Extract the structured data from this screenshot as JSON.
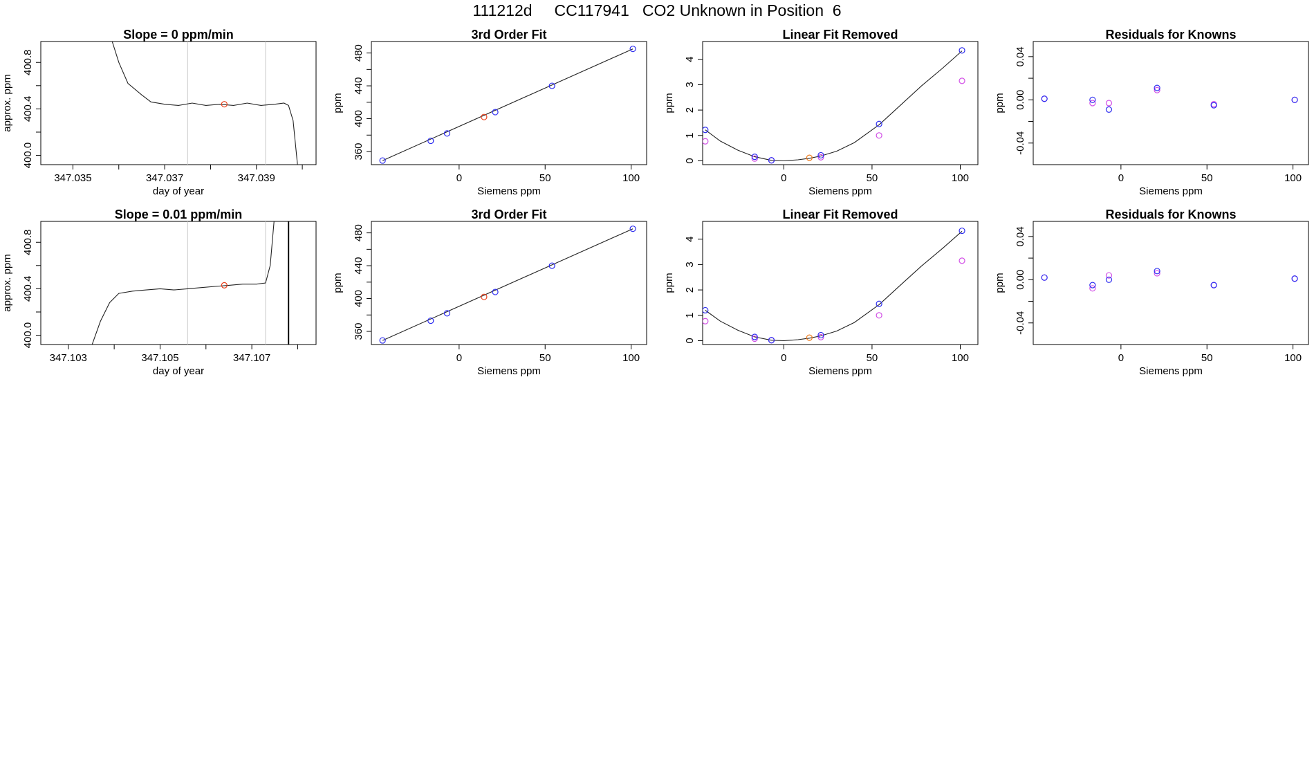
{
  "title": "111212d     CC117941   CO2 Unknown in Position  6",
  "colors": {
    "blue": "#2e2ef0",
    "red": "#e8401c",
    "orange": "#ee7a1a",
    "magenta": "#d24ee6",
    "purple": "#8a2be2",
    "gray": "#c8c8c8",
    "line": "#222222"
  },
  "chart_data": [
    {
      "type": "line",
      "title": "Slope =  0  ppm/min",
      "xlabel": "day of year",
      "ylabel": "approx. ppm",
      "xticks": [
        "347.035",
        "347.037",
        "347.039"
      ],
      "xtick_values": [
        347.035,
        347.036,
        347.037,
        347.038,
        347.039,
        347.04
      ],
      "yticks": [
        "400.0",
        "400.4",
        "400.8"
      ],
      "ytick_values": [
        400.0,
        400.2,
        400.4,
        400.6,
        400.8
      ],
      "xlim": [
        347.0343,
        347.0403
      ],
      "ylim": [
        399.92,
        400.98
      ],
      "vlines_gray": [
        347.0375,
        347.0392
      ],
      "series": [
        {
          "x": [
            347.0358,
            347.036,
            347.0362,
            347.0365,
            347.0367,
            347.037,
            347.0373,
            347.0376,
            347.0379,
            347.0382,
            347.0385,
            347.0388,
            347.0391,
            347.0394,
            347.0396,
            347.0397,
            347.0398,
            347.0399
          ],
          "y": [
            401.05,
            400.8,
            400.62,
            400.52,
            400.46,
            400.44,
            400.43,
            400.45,
            400.43,
            400.44,
            400.43,
            400.45,
            400.43,
            400.44,
            400.45,
            400.43,
            400.3,
            399.9
          ]
        }
      ],
      "marker": {
        "x": 347.0383,
        "y": 400.44,
        "color": "red"
      }
    },
    {
      "type": "scatter",
      "title": "3rd Order Fit",
      "xlabel": "Siemens ppm",
      "ylabel": "ppm",
      "xticks": [
        "0",
        "50",
        "100"
      ],
      "xtick_values": [
        0,
        50,
        100
      ],
      "yticks": [
        "360",
        "400",
        "440",
        "480"
      ],
      "ytick_values": [
        360,
        380,
        400,
        420,
        440,
        460,
        480
      ],
      "xlim": [
        -51,
        109
      ],
      "ylim": [
        344,
        494
      ],
      "fit_line": {
        "x": [
          -44.5,
          101
        ],
        "y": [
          349,
          485
        ]
      },
      "points_blue": {
        "x": [
          -44.5,
          -16.5,
          -7,
          21,
          54,
          101
        ],
        "y": [
          349,
          373,
          382,
          408,
          440,
          485
        ]
      },
      "points_red": {
        "x": [
          14.5
        ],
        "y": [
          402
        ]
      }
    },
    {
      "type": "scatter",
      "title": "Linear Fit Removed",
      "xlabel": "Siemens ppm",
      "ylabel": "ppm",
      "xticks": [
        "0",
        "50",
        "100"
      ],
      "xtick_values": [
        0,
        50,
        100
      ],
      "yticks": [
        "0",
        "1",
        "2",
        "3",
        "4"
      ],
      "ytick_values": [
        0,
        1,
        2,
        3,
        4
      ],
      "xlim": [
        -46,
        110
      ],
      "ylim": [
        -0.15,
        4.7
      ],
      "curve": {
        "x": [
          -44.5,
          -36,
          -26,
          -16.5,
          -7,
          0,
          8,
          14.5,
          21,
          30,
          40,
          54,
          65,
          78,
          90,
          101
        ],
        "y": [
          1.22,
          0.78,
          0.42,
          0.16,
          0.02,
          0.0,
          0.04,
          0.1,
          0.19,
          0.38,
          0.72,
          1.42,
          2.12,
          2.95,
          3.65,
          4.33
        ]
      },
      "points_blue": {
        "x": [
          -44.5,
          -16.5,
          -7,
          21,
          54,
          101
        ],
        "y": [
          1.22,
          0.16,
          0.02,
          0.22,
          1.45,
          4.35
        ]
      },
      "points_magenta": {
        "x": [
          -44.5,
          -16.5,
          -7,
          21,
          54,
          101
        ],
        "y": [
          0.77,
          0.09,
          0.02,
          0.14,
          1.0,
          3.15
        ]
      },
      "points_orange": {
        "x": [
          14.5
        ],
        "y": [
          0.12
        ]
      }
    },
    {
      "type": "scatter",
      "title": "Residuals for Knowns",
      "xlabel": "Siemens ppm",
      "ylabel": "ppm",
      "xticks": [
        "0",
        "50",
        "100"
      ],
      "xtick_values": [
        0,
        50,
        100
      ],
      "yticks": [
        "-0.04",
        "0.00",
        "0.04"
      ],
      "ytick_values": [
        -0.04,
        -0.02,
        0.0,
        0.02,
        0.04
      ],
      "xlim": [
        -51,
        109
      ],
      "ylim": [
        -0.06,
        0.054
      ],
      "points_blue": {
        "x": [
          -44.5,
          -16.5,
          -7,
          21,
          54,
          101
        ],
        "y": [
          0.001,
          0.0,
          -0.009,
          0.011,
          -0.005,
          0.0
        ]
      },
      "points_magenta": {
        "x": [
          -44.5,
          -16.5,
          -7,
          21,
          54,
          101
        ],
        "y": [
          0.001,
          -0.003,
          -0.003,
          0.009,
          -0.004,
          0.0
        ]
      }
    },
    {
      "type": "line",
      "title": "Slope =  0.01  ppm/min",
      "xlabel": "day of year",
      "ylabel": "approx. ppm",
      "xticks": [
        "347.103",
        "347.105",
        "347.107"
      ],
      "xtick_values": [
        347.103,
        347.104,
        347.105,
        347.106,
        347.107,
        347.108
      ],
      "yticks": [
        "400.0",
        "400.4",
        "400.8"
      ],
      "ytick_values": [
        400.0,
        400.2,
        400.4,
        400.6,
        400.8
      ],
      "xlim": [
        347.1024,
        347.1084
      ],
      "ylim": [
        399.92,
        400.98
      ],
      "vlines_gray": [
        347.1056,
        347.1073
      ],
      "vlines_black": [
        347.1078
      ],
      "series": [
        {
          "x": [
            347.1035,
            347.1037,
            347.1039,
            347.1041,
            347.1044,
            347.1047,
            347.105,
            347.1053,
            347.1056,
            347.1059,
            347.1062,
            347.1065,
            347.1068,
            347.1071,
            347.1073,
            347.1074,
            347.1075
          ],
          "y": [
            399.9,
            400.12,
            400.28,
            400.36,
            400.38,
            400.39,
            400.4,
            400.39,
            400.4,
            400.41,
            400.42,
            400.43,
            400.44,
            400.44,
            400.45,
            400.6,
            401.05
          ]
        }
      ],
      "marker": {
        "x": 347.1064,
        "y": 400.43,
        "color": "red"
      }
    },
    {
      "type": "scatter",
      "title": "3rd Order Fit",
      "xlabel": "Siemens ppm",
      "ylabel": "ppm",
      "xticks": [
        "0",
        "50",
        "100"
      ],
      "xtick_values": [
        0,
        50,
        100
      ],
      "yticks": [
        "360",
        "400",
        "440",
        "480"
      ],
      "ytick_values": [
        360,
        380,
        400,
        420,
        440,
        460,
        480
      ],
      "xlim": [
        -51,
        109
      ],
      "ylim": [
        344,
        494
      ],
      "fit_line": {
        "x": [
          -44.5,
          101
        ],
        "y": [
          349,
          485
        ]
      },
      "points_blue": {
        "x": [
          -44.5,
          -16.5,
          -7,
          21,
          54,
          101
        ],
        "y": [
          349,
          373,
          382,
          408,
          440,
          485
        ]
      },
      "points_red": {
        "x": [
          14.5
        ],
        "y": [
          402
        ]
      }
    },
    {
      "type": "scatter",
      "title": "Linear Fit Removed",
      "xlabel": "Siemens ppm",
      "ylabel": "ppm",
      "xticks": [
        "0",
        "50",
        "100"
      ],
      "xtick_values": [
        0,
        50,
        100
      ],
      "yticks": [
        "0",
        "1",
        "2",
        "3",
        "4"
      ],
      "ytick_values": [
        0,
        1,
        2,
        3,
        4
      ],
      "xlim": [
        -46,
        110
      ],
      "ylim": [
        -0.15,
        4.7
      ],
      "curve": {
        "x": [
          -44.5,
          -36,
          -26,
          -16.5,
          -7,
          0,
          8,
          14.5,
          21,
          30,
          40,
          54,
          65,
          78,
          90,
          101
        ],
        "y": [
          1.2,
          0.77,
          0.41,
          0.15,
          0.02,
          0.0,
          0.04,
          0.1,
          0.19,
          0.38,
          0.72,
          1.42,
          2.12,
          2.94,
          3.64,
          4.31
        ]
      },
      "points_blue": {
        "x": [
          -44.5,
          -16.5,
          -7,
          21,
          54,
          101
        ],
        "y": [
          1.2,
          0.15,
          0.02,
          0.22,
          1.45,
          4.33
        ]
      },
      "points_magenta": {
        "x": [
          -44.5,
          -16.5,
          -7,
          21,
          54,
          101
        ],
        "y": [
          0.77,
          0.08,
          0.02,
          0.14,
          1.0,
          3.15
        ]
      },
      "points_orange": {
        "x": [
          14.5
        ],
        "y": [
          0.12
        ]
      }
    },
    {
      "type": "scatter",
      "title": "Residuals for Knowns",
      "xlabel": "Siemens ppm",
      "ylabel": "ppm",
      "xticks": [
        "0",
        "50",
        "100"
      ],
      "xtick_values": [
        0,
        50,
        100
      ],
      "yticks": [
        "-0.04",
        "0.00",
        "0.04"
      ],
      "ytick_values": [
        -0.04,
        -0.02,
        0.0,
        0.02,
        0.04
      ],
      "xlim": [
        -51,
        109
      ],
      "ylim": [
        -0.06,
        0.054
      ],
      "points_blue": {
        "x": [
          -44.5,
          -16.5,
          -7,
          21,
          54,
          101
        ],
        "y": [
          0.002,
          -0.005,
          0.0,
          0.008,
          -0.005,
          0.001
        ]
      },
      "points_magenta": {
        "x": [
          -44.5,
          -16.5,
          -7,
          21,
          54,
          101
        ],
        "y": [
          0.002,
          -0.008,
          0.004,
          0.006,
          -0.005,
          0.001
        ]
      }
    }
  ]
}
